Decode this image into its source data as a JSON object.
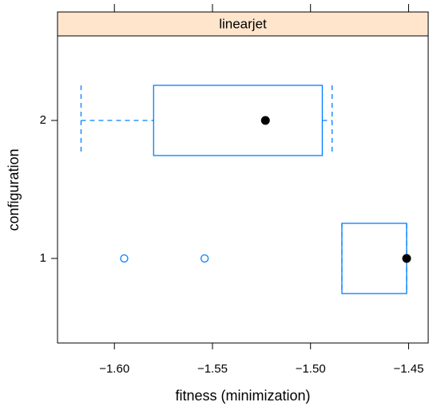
{
  "chart_data": {
    "type": "box",
    "strip": "linearjet",
    "x_label": "fitness (minimization)",
    "y_label": "configuration",
    "categories": [
      "1",
      "2"
    ],
    "color": "#0080ff",
    "strip_color": "#ffe5cc",
    "boxes": [
      {
        "min": -1.484,
        "q1": -1.484,
        "median": -1.451,
        "q3": -1.451,
        "max": -1.451,
        "outliers": [
          -1.595,
          -1.554
        ]
      },
      {
        "min": -1.617,
        "q1": -1.58,
        "median": -1.523,
        "q3": -1.494,
        "max": -1.489,
        "outliers": []
      }
    ],
    "xlim": [
      -1.629,
      -1.44
    ],
    "xticks": [
      {
        "value": -1.6,
        "label": "−1.60"
      },
      {
        "value": -1.55,
        "label": "−1.55"
      },
      {
        "value": -1.5,
        "label": "−1.50"
      },
      {
        "value": -1.45,
        "label": "−1.45"
      }
    ]
  }
}
